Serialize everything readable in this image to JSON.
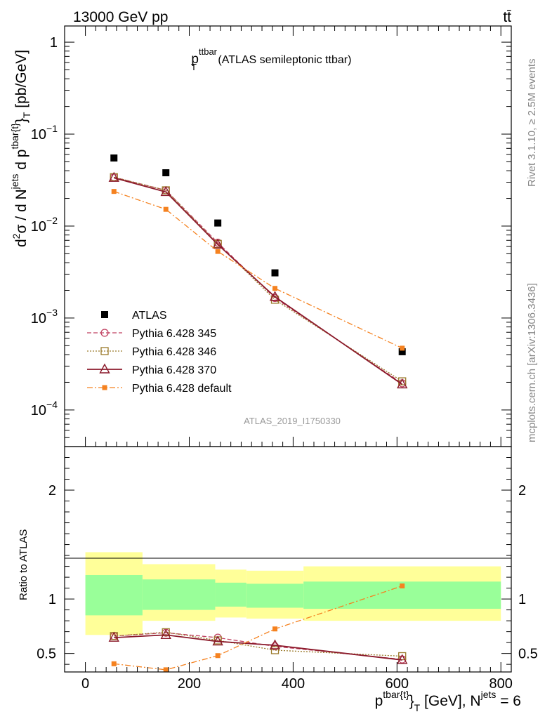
{
  "header": {
    "process": "13000 GeV pp",
    "channel": "tt̄"
  },
  "side": {
    "rivet": "Rivet 3.1.10, ≥ 2.5M events",
    "source": "mcplots.cern.ch [arXiv:1306.3436]"
  },
  "chart_data": [
    {
      "type": "line",
      "panel": "main",
      "title": {
        "base": "p",
        "sub": "T",
        "sup": "ttbar",
        "rest": " (ATLAS semileptonic ttbar)"
      },
      "ylabel": "d²σ / d N^jets d p^tbar{t}_T [pb/GeV]",
      "ylabel_parts": {
        "a": "d",
        "a_sup": "2",
        "b": "σ  /  d N",
        "b_sup": "jets",
        "c": " d p",
        "c_sup": "tbar{t}",
        "d": "}",
        "d_sub": "T",
        "e": " [pb/GeV]"
      },
      "yscale": "log",
      "ylim": [
        4e-05,
        1.5
      ],
      "xlim": [
        -40,
        820
      ],
      "ytick_labels": [
        {
          "value": 1,
          "mant": "1",
          "exp": ""
        },
        {
          "value": 0.1,
          "mant": "10",
          "exp": "−1"
        },
        {
          "value": 0.01,
          "mant": "10",
          "exp": "−2"
        },
        {
          "value": 0.001,
          "mant": "10",
          "exp": "−3"
        },
        {
          "value": 0.0001,
          "mant": "10",
          "exp": "−4"
        }
      ],
      "watermark": "ATLAS_2019_I1750330",
      "legend_position": "lower-left",
      "series": [
        {
          "name": "ATLAS",
          "color": "#000000",
          "marker": "filled-square",
          "line": "none",
          "x": [
            55,
            155,
            255,
            365,
            610
          ],
          "y": [
            0.055,
            0.038,
            0.0108,
            0.0031,
            0.00043
          ]
        },
        {
          "name": "Pythia 6.428 345",
          "color": "#c04060",
          "marker": "open-circle",
          "line": "dashed",
          "x": [
            55,
            155,
            255,
            365,
            610
          ],
          "y": [
            0.034,
            0.0245,
            0.0066,
            0.00165,
            0.000195
          ]
        },
        {
          "name": "Pythia 6.428 346",
          "color": "#9a7a2a",
          "marker": "open-square",
          "line": "dotted",
          "x": [
            55,
            155,
            255,
            365,
            610
          ],
          "y": [
            0.034,
            0.0245,
            0.0064,
            0.00158,
            0.000205
          ]
        },
        {
          "name": "Pythia 6.428 370",
          "color": "#8b1a2b",
          "marker": "open-triangle",
          "line": "solid",
          "x": [
            55,
            155,
            255,
            365,
            610
          ],
          "y": [
            0.0335,
            0.0235,
            0.0063,
            0.0017,
            0.00019
          ]
        },
        {
          "name": "Pythia 6.428 default",
          "color": "#f58220",
          "marker": "small-filled-square",
          "line": "dashdot",
          "x": [
            55,
            155,
            255,
            365,
            610
          ],
          "y": [
            0.0238,
            0.0152,
            0.0053,
            0.0021,
            0.00047
          ]
        }
      ]
    },
    {
      "type": "line",
      "panel": "ratio",
      "ylabel": "Ratio to ATLAS",
      "xlabel": "p^tbar{t}_T [GeV], N^jets = 6",
      "xlabel_parts": {
        "a": "p",
        "a_sup": "tbar{t}",
        "b": "}",
        "b_sub": "T",
        "c": " [GeV], N",
        "c_sup": "jets",
        "d": " = 6"
      },
      "xlim": [
        -40,
        820
      ],
      "ylim": [
        0.33,
        2.4
      ],
      "xtick_labels": [
        "0",
        "200",
        "400",
        "600",
        "800"
      ],
      "ytick_labels": [
        "0.5",
        "1",
        "2"
      ],
      "bands": {
        "bins": [
          [
            0,
            110
          ],
          [
            110,
            250
          ],
          [
            250,
            310
          ],
          [
            310,
            420
          ],
          [
            420,
            800
          ]
        ],
        "yellow": [
          [
            0.67,
            1.43
          ],
          [
            0.8,
            1.32
          ],
          [
            0.83,
            1.27
          ],
          [
            0.82,
            1.26
          ],
          [
            0.8,
            1.3
          ]
        ],
        "green": [
          [
            0.85,
            1.22
          ],
          [
            0.9,
            1.18
          ],
          [
            0.93,
            1.15
          ],
          [
            0.92,
            1.14
          ],
          [
            0.91,
            1.16
          ]
        ],
        "yellow_color": "#ffff99",
        "green_color": "#99ff99"
      },
      "series": [
        {
          "name": "Pythia 6.428 345",
          "color": "#c04060",
          "marker": "open-circle",
          "line": "dashed",
          "x": [
            55,
            155,
            255,
            365,
            610
          ],
          "y": [
            0.66,
            0.69,
            0.645,
            0.565,
            0.445
          ]
        },
        {
          "name": "Pythia 6.428 346",
          "color": "#9a7a2a",
          "marker": "open-square",
          "line": "dotted",
          "x": [
            55,
            155,
            255,
            365,
            610
          ],
          "y": [
            0.66,
            0.695,
            0.62,
            0.53,
            0.475
          ]
        },
        {
          "name": "Pythia 6.428 370",
          "color": "#8b1a2b",
          "marker": "open-triangle",
          "line": "solid",
          "x": [
            55,
            155,
            255,
            365,
            610
          ],
          "y": [
            0.645,
            0.67,
            0.61,
            0.575,
            0.44
          ]
        },
        {
          "name": "Pythia 6.428 default",
          "color": "#f58220",
          "marker": "small-filled-square",
          "line": "dashdot",
          "x": [
            55,
            155,
            255,
            365,
            610
          ],
          "y": [
            0.405,
            0.35,
            0.48,
            0.725,
            1.12
          ]
        }
      ]
    }
  ]
}
